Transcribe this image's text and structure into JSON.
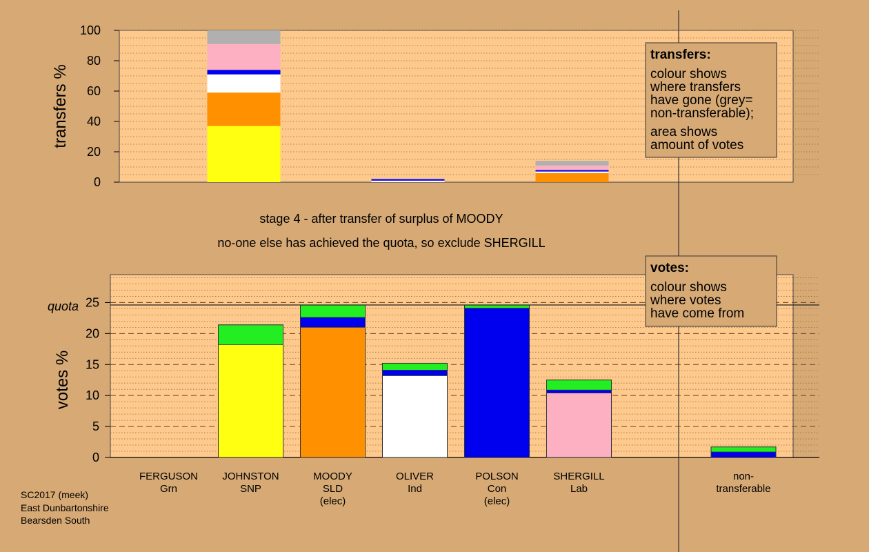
{
  "stage_text": "stage 4 - after transfer of surplus of MOODY",
  "exclude_text": "no-one else has achieved the quota, so exclude SHERGILL",
  "footer": [
    "SC2017 (meek)",
    "East Dunbartonshire",
    "Bearsden South"
  ],
  "legend_transfers": {
    "title": "transfers:",
    "block1": [
      "colour shows",
      "where transfers",
      "have gone (grey=",
      "non-transferable);"
    ],
    "block2": [
      "area shows",
      "amount of votes"
    ]
  },
  "legend_votes": {
    "title": "votes:",
    "block1": [
      "colour shows",
      "where votes",
      "have come from"
    ]
  },
  "colors": {
    "page_bg": "#d6a975",
    "panel_bg": "#fdc98d",
    "Grn": "#22ee22",
    "SNP": "#ffff11",
    "SLD": "#ff9000",
    "Ind": "#ffffff",
    "Con": "#0000ee",
    "Lab": "#fcb0c2",
    "nontransferable": "#b0b0b0"
  },
  "chart_data": [
    {
      "type": "bar",
      "stacked": true,
      "ylabel": "transfers %",
      "ylim": [
        0,
        100
      ],
      "yticks": [
        0,
        20,
        40,
        60,
        80,
        100
      ],
      "categories": [
        "FERGUSON",
        "JOHNSTON",
        "MOODY",
        "OLIVER",
        "POLSON",
        "SHERGILL"
      ],
      "bars": [
        {
          "category": "JOHNSTON",
          "width_share": 1.0,
          "segments": [
            {
              "dest": "SNP",
              "value": 37
            },
            {
              "dest": "SLD",
              "value": 22
            },
            {
              "dest": "Ind",
              "value": 12
            },
            {
              "dest": "Con",
              "value": 3
            },
            {
              "dest": "Lab",
              "value": 17
            },
            {
              "dest": "nontransferable",
              "value": 9
            }
          ]
        },
        {
          "category": "OLIVER",
          "width_share": 1.0,
          "segments": [
            {
              "dest": "Ind",
              "value": 1
            },
            {
              "dest": "Con",
              "value": 1
            }
          ]
        },
        {
          "category": "SHERGILL",
          "width_share": 1.0,
          "segments": [
            {
              "dest": "SLD",
              "value": 6
            },
            {
              "dest": "Ind",
              "value": 1
            },
            {
              "dest": "Con",
              "value": 1
            },
            {
              "dest": "Lab",
              "value": 3
            },
            {
              "dest": "nontransferable",
              "value": 3
            }
          ]
        }
      ]
    },
    {
      "type": "bar",
      "stacked": true,
      "ylabel": "votes %",
      "ylim": [
        0,
        29.5
      ],
      "yticks": [
        0,
        5,
        10,
        15,
        20,
        25
      ],
      "quota": 24.6,
      "quota_label": "quota",
      "candidates": [
        {
          "name": "FERGUSON",
          "party": "Grn",
          "status": "",
          "segments": []
        },
        {
          "name": "JOHNSTON",
          "party": "SNP",
          "status": "",
          "segments": [
            {
              "source": "SNP",
              "value": 18.2
            },
            {
              "source": "Grn",
              "value": 3.2
            }
          ]
        },
        {
          "name": "MOODY",
          "party": "SLD",
          "status": "(elec)",
          "segments": [
            {
              "source": "SLD",
              "value": 21.0
            },
            {
              "source": "Con",
              "value": 1.6
            },
            {
              "source": "Grn",
              "value": 2.0
            }
          ]
        },
        {
          "name": "OLIVER",
          "party": "Ind",
          "status": "",
          "segments": [
            {
              "source": "Ind",
              "value": 13.2
            },
            {
              "source": "Con",
              "value": 0.9
            },
            {
              "source": "Grn",
              "value": 1.1
            }
          ]
        },
        {
          "name": "POLSON",
          "party": "Con",
          "status": "(elec)",
          "segments": [
            {
              "source": "Con",
              "value": 24.1
            },
            {
              "source": "Grn",
              "value": 0.5
            }
          ]
        },
        {
          "name": "SHERGILL",
          "party": "Lab",
          "status": "",
          "segments": [
            {
              "source": "Lab",
              "value": 10.4
            },
            {
              "source": "Con",
              "value": 0.5
            },
            {
              "source": "Grn",
              "value": 1.6
            }
          ]
        },
        {
          "name": "non-",
          "party": "transferable",
          "status": "",
          "segments": [
            {
              "source": "Con",
              "value": 0.9
            },
            {
              "source": "Grn",
              "value": 0.8
            }
          ]
        }
      ]
    }
  ]
}
